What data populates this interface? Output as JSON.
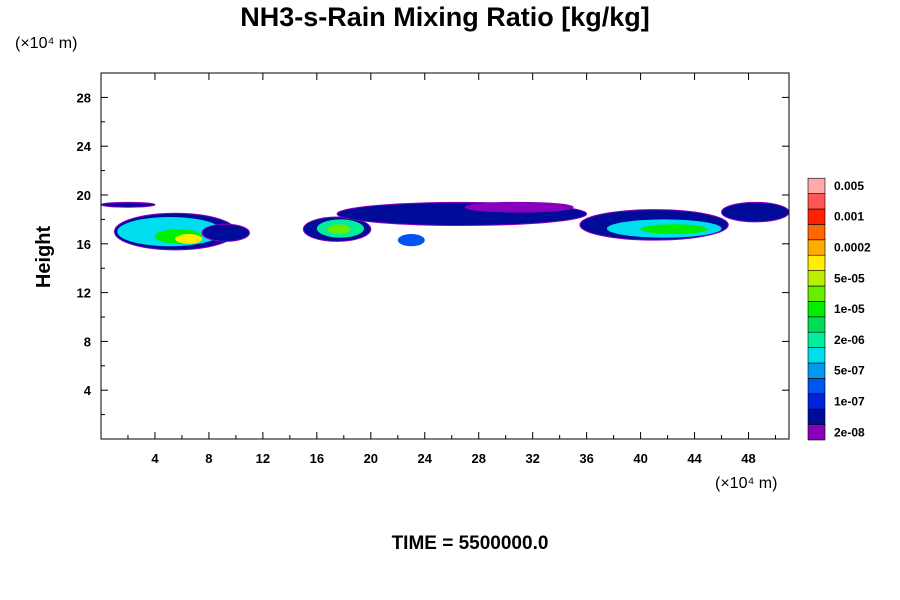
{
  "chart_data": {
    "type": "heatmap",
    "title": "NH3-s-Rain Mixing Ratio [kg/kg]",
    "ylabel": "Height",
    "y_unit_label": "(×10⁴ m)",
    "x_unit_label": "(×10⁴ m)",
    "xlim": [
      0,
      51
    ],
    "ylim": [
      0,
      30
    ],
    "x_ticks": [
      4,
      8,
      12,
      16,
      20,
      24,
      28,
      32,
      36,
      40,
      44,
      48
    ],
    "y_ticks": [
      4,
      8,
      12,
      16,
      20,
      24,
      28
    ],
    "x_tick_labels": [
      "4",
      "8",
      "12",
      "16",
      "20",
      "24",
      "28",
      "32",
      "36",
      "40",
      "44",
      "48"
    ],
    "y_tick_labels": [
      "4",
      "8",
      "12",
      "16",
      "20",
      "24",
      "28"
    ],
    "colorbar": {
      "colors": [
        "#8800bb",
        "#000c99",
        "#0022dd",
        "#0055ee",
        "#0099f0",
        "#00ddee",
        "#00ee99",
        "#00dd55",
        "#00ee00",
        "#66ee00",
        "#bbee00",
        "#ffee00",
        "#ffaa00",
        "#ff6600",
        "#ff2200",
        "#ff5555",
        "#ffaaaa"
      ],
      "labels": [
        "2e-08",
        "1e-07",
        "5e-07",
        "2e-06",
        "1e-05",
        "5e-05",
        "0.0002",
        "0.001",
        "0.005"
      ]
    },
    "regions": [
      {
        "x": [
          0,
          4
        ],
        "y": [
          19.0,
          19.4
        ],
        "level": 1
      },
      {
        "x": [
          1,
          10
        ],
        "y": [
          15.5,
          18.5
        ],
        "level": 1
      },
      {
        "x": [
          1.2,
          9
        ],
        "y": [
          15.8,
          18.2
        ],
        "level": 5
      },
      {
        "x": [
          4,
          7.5
        ],
        "y": [
          16.0,
          17.2
        ],
        "level": 8
      },
      {
        "x": [
          5.5,
          7.5
        ],
        "y": [
          16.0,
          16.8
        ],
        "level": 11
      },
      {
        "x": [
          7.5,
          11
        ],
        "y": [
          16.2,
          17.6
        ],
        "level": 1
      },
      {
        "x": [
          15,
          20
        ],
        "y": [
          16.2,
          18.2
        ],
        "level": 1
      },
      {
        "x": [
          16,
          19.5
        ],
        "y": [
          16.5,
          18.0
        ],
        "level": 6
      },
      {
        "x": [
          16.8,
          18.5
        ],
        "y": [
          16.8,
          17.6
        ],
        "level": 9
      },
      {
        "x": [
          22,
          24
        ],
        "y": [
          15.8,
          16.8
        ],
        "level": 3
      },
      {
        "x": [
          17.5,
          36
        ],
        "y": [
          17.5,
          19.4
        ],
        "level": 1
      },
      {
        "x": [
          27,
          35
        ],
        "y": [
          18.6,
          19.4
        ],
        "level": 0
      },
      {
        "x": [
          35.5,
          46.5
        ],
        "y": [
          16.3,
          18.8
        ],
        "level": 1
      },
      {
        "x": [
          37.5,
          46
        ],
        "y": [
          16.5,
          18.0
        ],
        "level": 5
      },
      {
        "x": [
          40,
          45
        ],
        "y": [
          16.8,
          17.6
        ],
        "level": 8
      },
      {
        "x": [
          46,
          51
        ],
        "y": [
          17.8,
          19.4
        ],
        "level": 1
      }
    ]
  },
  "footer": {
    "time_label": "TIME = 5500000.0"
  }
}
